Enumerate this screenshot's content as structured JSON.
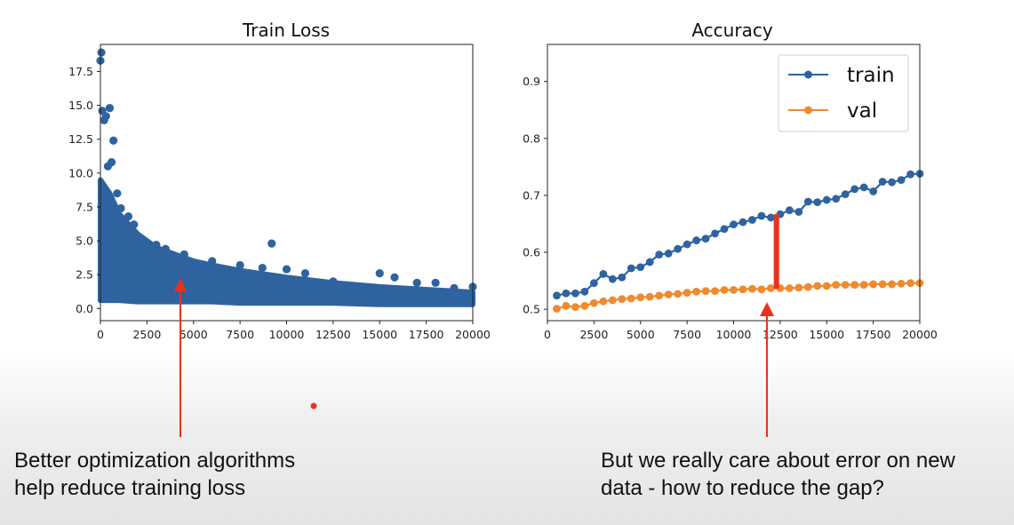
{
  "chart_data": [
    {
      "type": "scatter",
      "title": "Train Loss",
      "xlabel": "",
      "ylabel": "",
      "xlim": [
        0,
        20000
      ],
      "ylim": [
        -0.9,
        19.5
      ],
      "xticks": [
        "0",
        "2500",
        "5000",
        "7500",
        "10000",
        "12500",
        "15000",
        "17500",
        "20000"
      ],
      "yticks": [
        "0.0",
        "2.5",
        "5.0",
        "7.5",
        "10.0",
        "12.5",
        "15.0",
        "17.5"
      ],
      "color": "#2f63a0",
      "series": [
        {
          "x": [
            0,
            50,
            100,
            200,
            300,
            400,
            500,
            600,
            700,
            900,
            1100,
            1500,
            1800,
            2200,
            2600,
            3000,
            3500,
            4000,
            4500,
            5000,
            6000,
            7500,
            8700,
            9200,
            10000,
            11000,
            12500,
            15000,
            15800,
            17000,
            18000,
            19000,
            20000
          ],
          "y": [
            18.3,
            18.9,
            14.6,
            13.9,
            14.2,
            10.5,
            14.8,
            10.8,
            12.4,
            8.5,
            7.4,
            6.8,
            6.2,
            4.8,
            4.6,
            4.7,
            4.4,
            3.8,
            4.0,
            3.4,
            3.5,
            3.2,
            3.0,
            4.8,
            2.9,
            2.6,
            2.0,
            2.6,
            2.3,
            1.9,
            1.9,
            1.5,
            1.6
          ]
        }
      ],
      "band": {
        "x": [
          0,
          500,
          1000,
          2000,
          3000,
          4000,
          5000,
          6000,
          7500,
          10000,
          12500,
          15000,
          17500,
          20000
        ],
        "upper": [
          9.5,
          8.5,
          7.0,
          5.5,
          4.5,
          4.0,
          3.5,
          3.2,
          2.8,
          2.3,
          1.9,
          1.6,
          1.4,
          1.2
        ],
        "lower": [
          0.6,
          0.6,
          0.6,
          0.5,
          0.5,
          0.5,
          0.5,
          0.5,
          0.4,
          0.4,
          0.4,
          0.3,
          0.3,
          0.3
        ]
      }
    },
    {
      "type": "line",
      "title": "Accuracy",
      "xlabel": "",
      "ylabel": "",
      "xlim": [
        0,
        20000
      ],
      "ylim": [
        0.48,
        0.965
      ],
      "xticks": [
        "0",
        "2500",
        "5000",
        "7500",
        "10000",
        "12500",
        "15000",
        "17500",
        "20000"
      ],
      "yticks": [
        "0.5",
        "0.6",
        "0.7",
        "0.8",
        "0.9"
      ],
      "legend": "top-right",
      "series": [
        {
          "name": "train",
          "color": "#2f63a0",
          "x": [
            500,
            1000,
            1500,
            2000,
            2500,
            3000,
            3500,
            4000,
            4500,
            5000,
            5500,
            6000,
            6500,
            7000,
            7500,
            8000,
            8500,
            9000,
            9500,
            10000,
            10500,
            11000,
            11500,
            12000,
            12500,
            13000,
            13500,
            14000,
            14500,
            15000,
            15500,
            16000,
            16500,
            17000,
            17500,
            18000,
            18500,
            19000,
            19500,
            20000
          ],
          "y": [
            0.524,
            0.528,
            0.528,
            0.531,
            0.546,
            0.562,
            0.553,
            0.556,
            0.572,
            0.574,
            0.583,
            0.596,
            0.598,
            0.606,
            0.614,
            0.621,
            0.624,
            0.633,
            0.641,
            0.649,
            0.653,
            0.657,
            0.664,
            0.661,
            0.667,
            0.674,
            0.671,
            0.689,
            0.688,
            0.692,
            0.694,
            0.702,
            0.711,
            0.714,
            0.707,
            0.724,
            0.723,
            0.727,
            0.737,
            0.738
          ]
        },
        {
          "name": "val",
          "color": "#f08a2e",
          "x": [
            500,
            1000,
            1500,
            2000,
            2500,
            3000,
            3500,
            4000,
            4500,
            5000,
            5500,
            6000,
            6500,
            7000,
            7500,
            8000,
            8500,
            9000,
            9500,
            10000,
            10500,
            11000,
            11500,
            12000,
            12500,
            13000,
            13500,
            14000,
            14500,
            15000,
            15500,
            16000,
            16500,
            17000,
            17500,
            18000,
            18500,
            19000,
            19500,
            20000
          ],
          "y": [
            0.501,
            0.506,
            0.504,
            0.506,
            0.511,
            0.514,
            0.516,
            0.518,
            0.519,
            0.521,
            0.522,
            0.524,
            0.526,
            0.527,
            0.529,
            0.531,
            0.532,
            0.532,
            0.534,
            0.534,
            0.535,
            0.536,
            0.535,
            0.537,
            0.537,
            0.537,
            0.538,
            0.539,
            0.541,
            0.541,
            0.543,
            0.543,
            0.543,
            0.543,
            0.544,
            0.544,
            0.544,
            0.545,
            0.546,
            0.546
          ]
        }
      ],
      "gap_marker": {
        "x": 12300,
        "y_top": 0.667,
        "y_bottom": 0.536,
        "color": "#e8321d"
      }
    }
  ],
  "captions": {
    "left": [
      "Better optimization algorithms",
      "help reduce training loss"
    ],
    "right": [
      "But we really care about error on new",
      "data - how to reduce the gap?"
    ]
  },
  "annotation_color": "#e8321d"
}
